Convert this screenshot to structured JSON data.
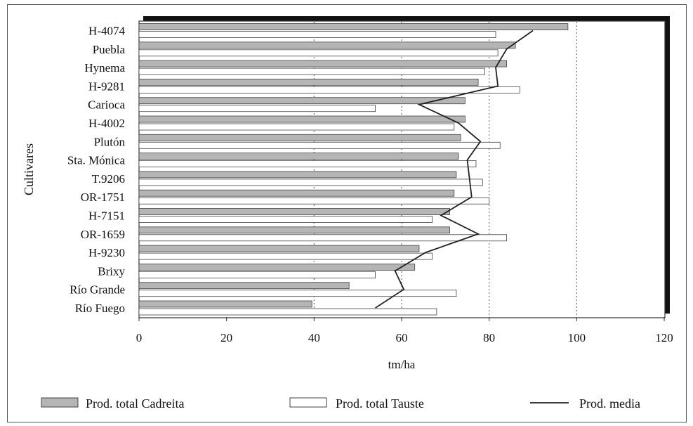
{
  "chart_data": {
    "type": "bar",
    "orientation": "horizontal",
    "categories": [
      "H-4074",
      "Puebla",
      "Hynema",
      "H-9281",
      "Carioca",
      "H-4002",
      "Plutón",
      "Sta. Mónica",
      "T.9206",
      "OR-1751",
      "H-7151",
      "OR-1659",
      "H-9230",
      "Brixy",
      "Río Grande",
      "Río Fuego"
    ],
    "series": [
      {
        "name": "Prod. total Cadreita",
        "type": "bar",
        "color": "#b5b5b5",
        "values": [
          98,
          86,
          84,
          77.5,
          74.5,
          74.5,
          73.5,
          73,
          72.5,
          72,
          71,
          71,
          64,
          63,
          48,
          39.5
        ]
      },
      {
        "name": "Prod. total Tauste",
        "type": "bar",
        "color": "#ffffff",
        "values": [
          81.5,
          82,
          79,
          87,
          54,
          72,
          82.5,
          77,
          78.5,
          80,
          67,
          84,
          67,
          54,
          72.5,
          68
        ]
      },
      {
        "name": "Prod. media",
        "type": "line",
        "color": "#222222",
        "values": [
          90,
          84,
          81.5,
          82,
          64,
          73,
          78,
          75,
          75.5,
          76,
          69,
          77.5,
          65.5,
          58.5,
          60.5,
          54
        ]
      }
    ],
    "xlabel": "tm/ha",
    "ylabel": "Cultivares",
    "xlim": [
      0,
      120
    ],
    "xticks": [
      "0",
      "20",
      "40",
      "60",
      "80",
      "100",
      "120"
    ],
    "vgrid_dotted_at": [
      40,
      60,
      80,
      100
    ],
    "legend_placement": "bottom"
  }
}
